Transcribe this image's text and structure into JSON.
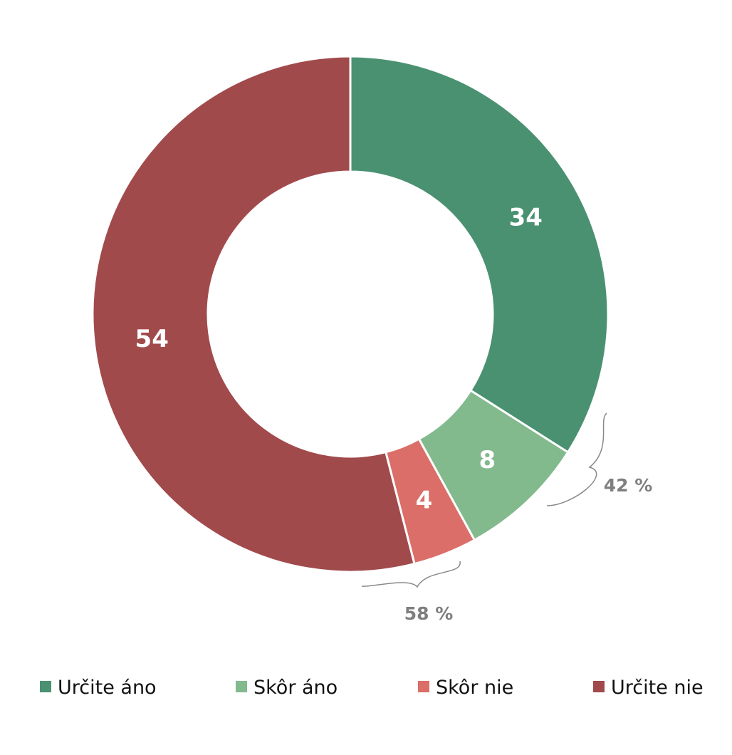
{
  "chart_data": {
    "type": "pie",
    "variant": "donut",
    "title": "",
    "categories": [
      "Určite áno",
      "Skôr áno",
      "Skôr nie",
      "Určite nie"
    ],
    "values": [
      34,
      8,
      4,
      54
    ],
    "colors": [
      "#4a9172",
      "#82ba8e",
      "#db6e68",
      "#a14a4c"
    ],
    "data_labels": [
      "34",
      "8",
      "4",
      "54"
    ],
    "group_annotations": [
      {
        "label": "42 %",
        "spans": [
          "Určite áno",
          "Skôr áno"
        ]
      },
      {
        "label": "58 %",
        "spans": [
          "Skôr nie",
          "Určite nie"
        ]
      }
    ],
    "legend": {
      "placement": "bottom",
      "entries": [
        "Určite áno",
        "Skôr áno",
        "Skôr nie",
        "Určite nie"
      ]
    }
  }
}
